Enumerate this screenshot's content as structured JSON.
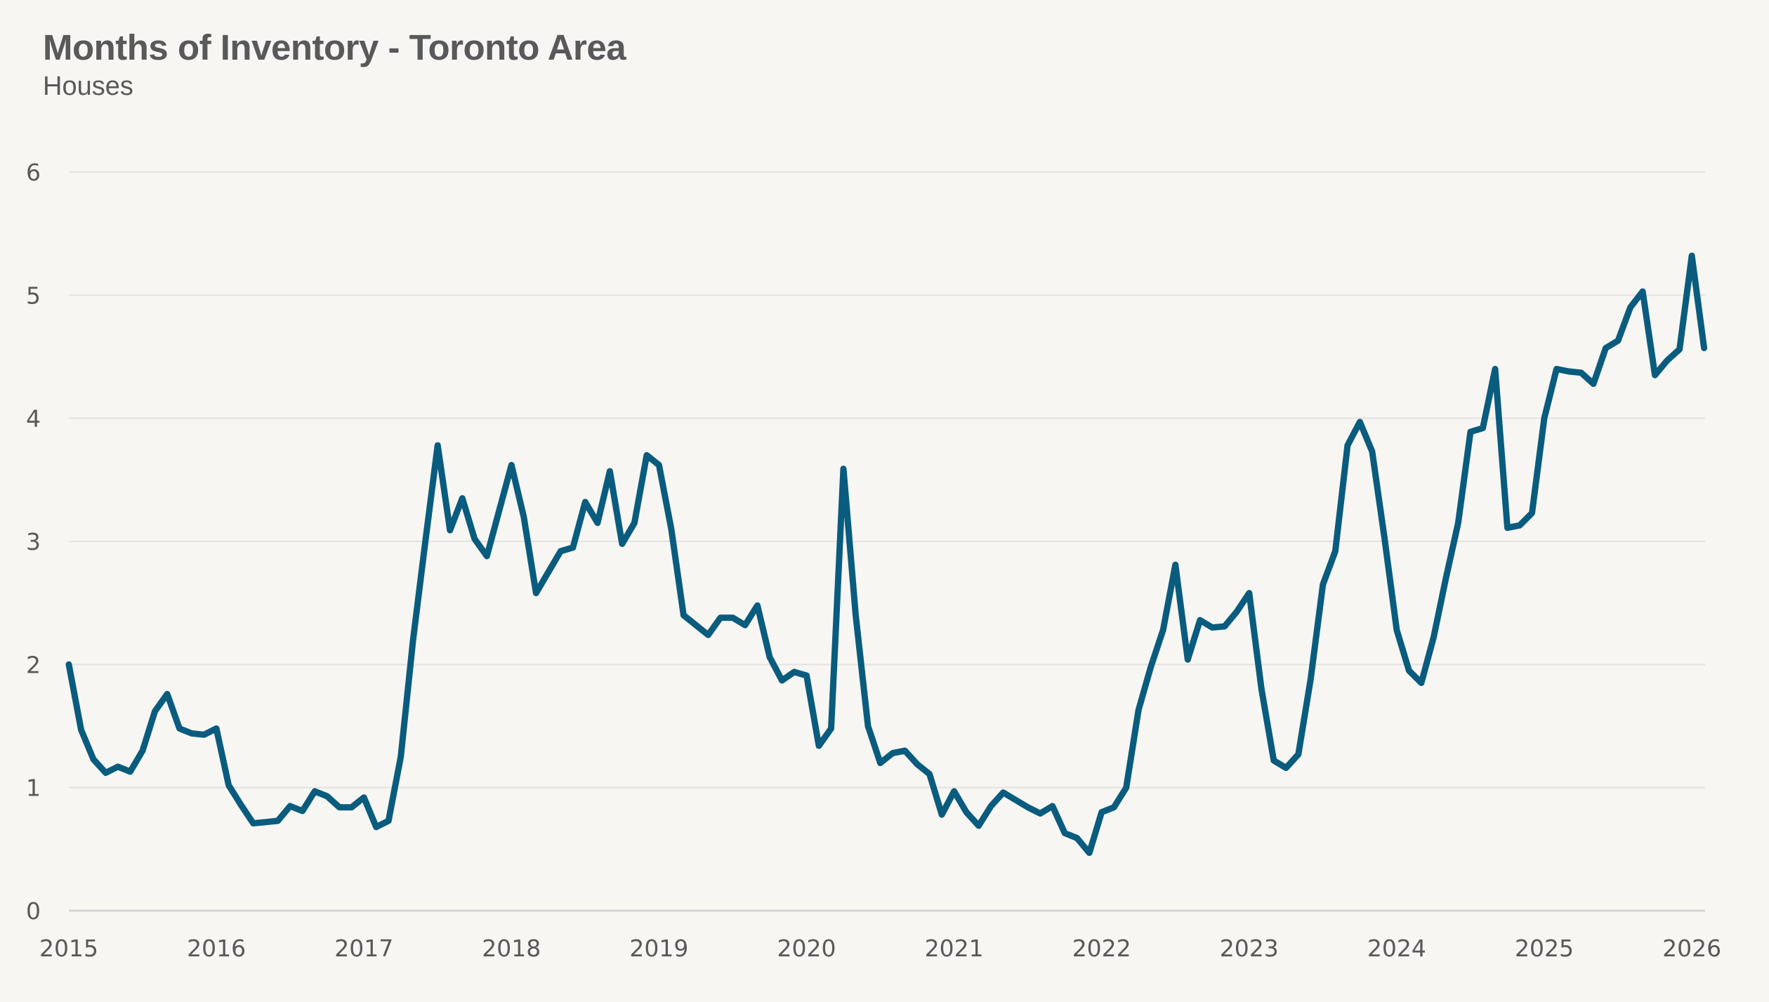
{
  "colors": {
    "line": "#0a5c7e",
    "grid": "#e3e2df",
    "axis": "#d6d6d6",
    "text": "#595959",
    "background": "#f7f6f3"
  },
  "chart_data": {
    "type": "line",
    "title": "Months of Inventory - Toronto Area",
    "subtitle": "Houses",
    "xlabel": "",
    "ylabel": "",
    "ylim": [
      0,
      6
    ],
    "yticks": [
      "0",
      "1",
      "2",
      "3",
      "4",
      "5",
      "6"
    ],
    "xticks": [
      "2015",
      "2016",
      "2017",
      "2018",
      "2019",
      "2020",
      "2021",
      "2022",
      "2023",
      "2024",
      "2025",
      "2026"
    ],
    "xrange": [
      "2015-01",
      "2026-02"
    ],
    "grid": true,
    "legend": "none",
    "series": [
      {
        "name": "Houses",
        "start": "2015-01",
        "frequency": "monthly",
        "values": [
          2.0,
          1.47,
          1.23,
          1.12,
          1.17,
          1.13,
          1.3,
          1.62,
          1.76,
          1.48,
          1.44,
          1.43,
          1.48,
          1.02,
          0.86,
          0.71,
          0.72,
          0.73,
          0.85,
          0.81,
          0.97,
          0.93,
          0.84,
          0.84,
          0.92,
          0.68,
          0.73,
          1.25,
          2.2,
          3.0,
          3.78,
          3.09,
          3.35,
          3.02,
          2.88,
          3.25,
          3.62,
          3.2,
          2.58,
          2.75,
          2.92,
          2.95,
          3.32,
          3.15,
          3.57,
          2.98,
          3.15,
          3.7,
          3.62,
          3.1,
          2.4,
          2.32,
          2.24,
          2.38,
          2.38,
          2.32,
          2.48,
          2.06,
          1.87,
          1.94,
          1.91,
          1.34,
          1.48,
          3.59,
          2.4,
          1.5,
          1.2,
          1.28,
          1.3,
          1.19,
          1.11,
          0.78,
          0.97,
          0.8,
          0.69,
          0.85,
          0.96,
          0.9,
          0.84,
          0.79,
          0.85,
          0.63,
          0.59,
          0.47,
          0.8,
          0.84,
          1.0,
          1.63,
          1.98,
          2.28,
          2.81,
          2.04,
          2.36,
          2.3,
          2.31,
          2.43,
          2.58,
          1.8,
          1.22,
          1.16,
          1.27,
          1.88,
          2.65,
          2.92,
          3.78,
          3.97,
          3.73,
          3.03,
          2.28,
          1.95,
          1.85,
          2.22,
          2.7,
          3.15,
          3.89,
          3.92,
          4.4,
          3.11,
          3.13,
          3.23,
          4.0,
          4.4,
          4.38,
          4.37,
          4.28,
          4.57,
          4.63,
          4.9,
          5.03,
          4.35,
          4.47,
          4.56,
          5.32,
          4.57
        ]
      }
    ]
  }
}
